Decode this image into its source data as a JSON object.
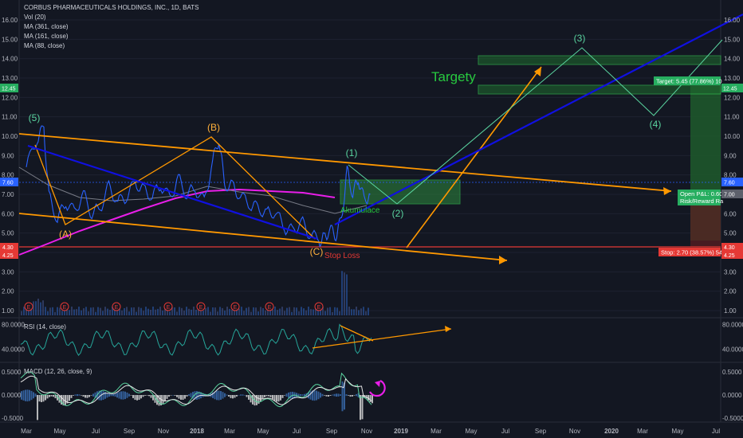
{
  "header": {
    "title": "CORBUS PHARMACEUTICALS HOLDINGS, INC., 1D, BATS",
    "legend": [
      "Vol (20)",
      "MA (361, close)",
      "MA (161, close)",
      "MA (88, close)"
    ]
  },
  "panes": {
    "rsi_label": "RSI (14, close)",
    "macd_label": "MACD (12, 26, close, 9)"
  },
  "annotations": {
    "targety": "Targety",
    "akumulace": "Akumulace",
    "stop_loss": "Stop Loss",
    "target_box": "Target: 5.45 (77.86%) 10",
    "stop_box": "Stop: 2.70 (38.57%) 54",
    "pnl_line1": "Open P&L: 0.60,",
    "pnl_line2": "Risk/Reward Ra",
    "waves": [
      "(5)",
      "(A)",
      "(B)",
      "(C)",
      "(1)",
      "(2)",
      "(3)",
      "(4)"
    ]
  },
  "x_ticks": [
    "Mar",
    "May",
    "Jul",
    "Sep",
    "Nov",
    "2018",
    "Mar",
    "May",
    "Jul",
    "Sep",
    "Nov",
    "2019",
    "Mar",
    "May",
    "Jul",
    "Sep",
    "Nov",
    "2020",
    "Mar",
    "May",
    "Jul"
  ],
  "price_ticks": [
    "16.00",
    "15.00",
    "14.00",
    "13.00",
    "12.00",
    "11.00",
    "10.00",
    "9.00",
    "8.00",
    "7.00",
    "6.00",
    "5.00",
    "4.00",
    "3.00",
    "2.00",
    "1.00"
  ],
  "price_badges": {
    "left_green": "12.45",
    "left_blue": "7.60",
    "left_red1": "4.30",
    "left_red2": "4.25",
    "right_green": "12.45",
    "right_blue": "7.60",
    "right_gray": "7.00",
    "right_red1": "4.30",
    "right_red2": "4.25"
  },
  "rsi_ticks": [
    "80.0000",
    "40.0000"
  ],
  "macd_ticks": [
    "0.5000",
    "0.0000",
    "-0.5000"
  ],
  "earnings_marker": "E",
  "colors": {
    "background": "#131722",
    "price_line": "#2962ff",
    "ma_magenta": "#e91ee9",
    "ma_gray": "#787b86",
    "trendline_orange": "#ff9800",
    "trendline_blue": "#1010e0",
    "target_green": "#27ae60",
    "stop_red": "#e53935",
    "wave_green": "#5ad5a0",
    "wave_yellow": "#ffb03b"
  },
  "chart_data": {
    "type": "line",
    "title": "CORBUS PHARMACEUTICALS HOLDINGS, INC., 1D, BATS",
    "ylim": [
      0.6,
      16.5
    ],
    "series": [
      {
        "name": "",
        "x": [
          "2017-03-01",
          "2017-03-20",
          "2017-04-01",
          "2017-04-10",
          "2017-04-25",
          "2017-05-10",
          "2017-05-25",
          "2017-06-10",
          "2017-06-25",
          "2017-07-10",
          "2017-07-25",
          "2017-08-10",
          "2017-08-25",
          "2017-09-10",
          "2017-09-25",
          "2017-10-10",
          "2017-10-25",
          "2017-11-10",
          "2017-11-25",
          "2017-12-10",
          "2017-12-25",
          "2018-01-10",
          "2018-01-25",
          "2018-02-05",
          "2018-02-15",
          "2018-03-01",
          "2018-03-15",
          "2018-04-01",
          "2018-04-15",
          "2018-05-01",
          "2018-05-15",
          "2018-06-01",
          "2018-06-15",
          "2018-07-01",
          "2018-07-15",
          "2018-08-01",
          "2018-08-10",
          "2018-08-20",
          "2018-08-31",
          "2018-09-10",
          "2018-09-20",
          "2018-09-30",
          "2018-10-10",
          "2018-10-20",
          "2018-10-31"
        ],
        "y": [
          8.4,
          9.9,
          10.4,
          6.9,
          5.7,
          6.6,
          6.1,
          7.0,
          6.0,
          6.3,
          7.4,
          6.6,
          6.9,
          7.6,
          7.2,
          6.9,
          7.5,
          6.8,
          7.8,
          7.0,
          7.3,
          6.6,
          8.7,
          9.9,
          7.5,
          7.4,
          6.9,
          6.5,
          6.3,
          6.0,
          6.1,
          5.3,
          5.1,
          5.6,
          5.0,
          4.6,
          4.7,
          5.2,
          4.9,
          5.7,
          8.2,
          7.0,
          7.8,
          6.7,
          7.0
        ]
      }
    ],
    "targets": {
      "target_high": 12.45,
      "entry": 7.0,
      "stop": 4.3
    },
    "rsi_ylim": [
      20,
      90
    ],
    "macd_ylim": [
      -0.6,
      0.6
    ]
  }
}
